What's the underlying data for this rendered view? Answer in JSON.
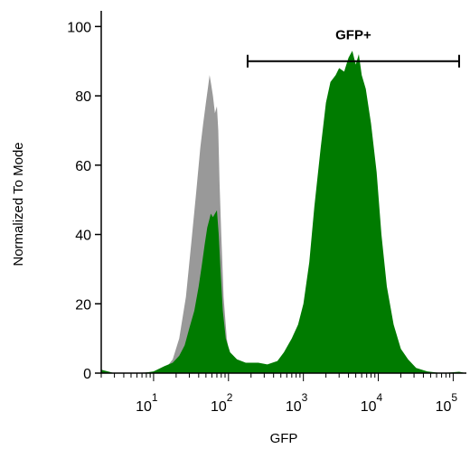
{
  "chart_data": {
    "type": "area",
    "title": "",
    "xlabel": "GFP",
    "ylabel": "Normalized To Mode",
    "x_scale": "log",
    "xlim": [
      2,
      150000
    ],
    "ylim": [
      0,
      104
    ],
    "x_decades": [
      {
        "base": "10",
        "exp": "1",
        "value": 10
      },
      {
        "base": "10",
        "exp": "2",
        "value": 100
      },
      {
        "base": "10",
        "exp": "3",
        "value": 1000
      },
      {
        "base": "10",
        "exp": "4",
        "value": 10000
      },
      {
        "base": "10",
        "exp": "5",
        "value": 100000
      }
    ],
    "y_ticks": [
      "0",
      "20",
      "40",
      "60",
      "80",
      "100"
    ],
    "gate": {
      "label": "GFP+",
      "x_start": 180,
      "x_end": 120000,
      "y": 90
    },
    "series": [
      {
        "color": "#999999",
        "points": [
          [
            2,
            0
          ],
          [
            5,
            0
          ],
          [
            10,
            0.3
          ],
          [
            14,
            1
          ],
          [
            18,
            4
          ],
          [
            22,
            10
          ],
          [
            27,
            22
          ],
          [
            32,
            38
          ],
          [
            37,
            52
          ],
          [
            42,
            65
          ],
          [
            46,
            72
          ],
          [
            50,
            78
          ],
          [
            53,
            82
          ],
          [
            56,
            86
          ],
          [
            59,
            83
          ],
          [
            62,
            80
          ],
          [
            66,
            75
          ],
          [
            70,
            77
          ],
          [
            73,
            70
          ],
          [
            76,
            55
          ],
          [
            80,
            40
          ],
          [
            86,
            22
          ],
          [
            95,
            10
          ],
          [
            105,
            4
          ],
          [
            120,
            1.5
          ],
          [
            150,
            0.5
          ],
          [
            200,
            0
          ],
          [
            150000,
            0
          ]
        ]
      },
      {
        "color": "#007b00",
        "points": [
          [
            2,
            1
          ],
          [
            3,
            0
          ],
          [
            7,
            0
          ],
          [
            10,
            0.5
          ],
          [
            14,
            2
          ],
          [
            18,
            3
          ],
          [
            22,
            5
          ],
          [
            26,
            8
          ],
          [
            30,
            13
          ],
          [
            35,
            18
          ],
          [
            40,
            25
          ],
          [
            44,
            31
          ],
          [
            48,
            37
          ],
          [
            52,
            42
          ],
          [
            55,
            44
          ],
          [
            58,
            46
          ],
          [
            62,
            45
          ],
          [
            66,
            46
          ],
          [
            70,
            47
          ],
          [
            74,
            40
          ],
          [
            78,
            30
          ],
          [
            84,
            18
          ],
          [
            92,
            10
          ],
          [
            105,
            6
          ],
          [
            130,
            4
          ],
          [
            170,
            3
          ],
          [
            250,
            3
          ],
          [
            330,
            2.5
          ],
          [
            450,
            3.5
          ],
          [
            550,
            6
          ],
          [
            700,
            10
          ],
          [
            850,
            14
          ],
          [
            1000,
            20
          ],
          [
            1200,
            32
          ],
          [
            1400,
            48
          ],
          [
            1700,
            65
          ],
          [
            2000,
            78
          ],
          [
            2300,
            84
          ],
          [
            2700,
            86
          ],
          [
            3000,
            88
          ],
          [
            3500,
            87
          ],
          [
            4000,
            91
          ],
          [
            4500,
            93
          ],
          [
            5000,
            89
          ],
          [
            5500,
            92
          ],
          [
            6000,
            86
          ],
          [
            6800,
            82
          ],
          [
            8000,
            72
          ],
          [
            9500,
            58
          ],
          [
            11000,
            40
          ],
          [
            13000,
            25
          ],
          [
            16000,
            14
          ],
          [
            20000,
            7
          ],
          [
            25000,
            4
          ],
          [
            32000,
            1.5
          ],
          [
            45000,
            0.5
          ],
          [
            70000,
            0
          ],
          [
            120000,
            0.4
          ],
          [
            150000,
            0
          ]
        ]
      }
    ]
  }
}
